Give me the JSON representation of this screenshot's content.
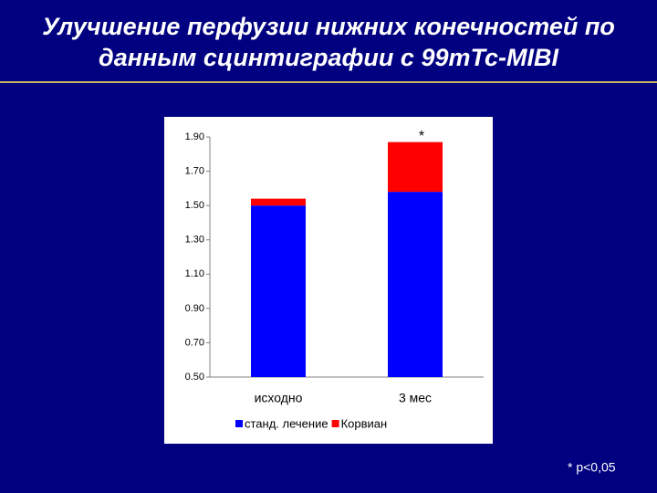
{
  "chart_data": {
    "type": "stacked-bar",
    "title": "Улучшение перфузии нижних конечностей по данным сцинтиграфии с 99mTc-MIBI",
    "categories": [
      "исходно",
      "3 мес"
    ],
    "series": [
      {
        "name": "станд. лечение",
        "color": "#0000ff",
        "values": [
          1.5,
          1.58
        ]
      },
      {
        "name": "Корвиан",
        "color": "#ff0000",
        "values": [
          0.04,
          0.29
        ]
      }
    ],
    "ylim": [
      0.5,
      1.9
    ],
    "yticks": [
      {
        "value": 0.5,
        "label": "0.50"
      },
      {
        "value": 0.7,
        "label": "0.70"
      },
      {
        "value": 0.9,
        "label": "0.90"
      },
      {
        "value": 1.1,
        "label": "1.10"
      },
      {
        "value": 1.3,
        "label": "1.30"
      },
      {
        "value": 1.5,
        "label": "1.50"
      },
      {
        "value": 1.7,
        "label": "1.70"
      },
      {
        "value": 1.9,
        "label": "1.90"
      }
    ],
    "annotation": "*",
    "footnote": "* p<0,05",
    "legend": "bottom"
  }
}
